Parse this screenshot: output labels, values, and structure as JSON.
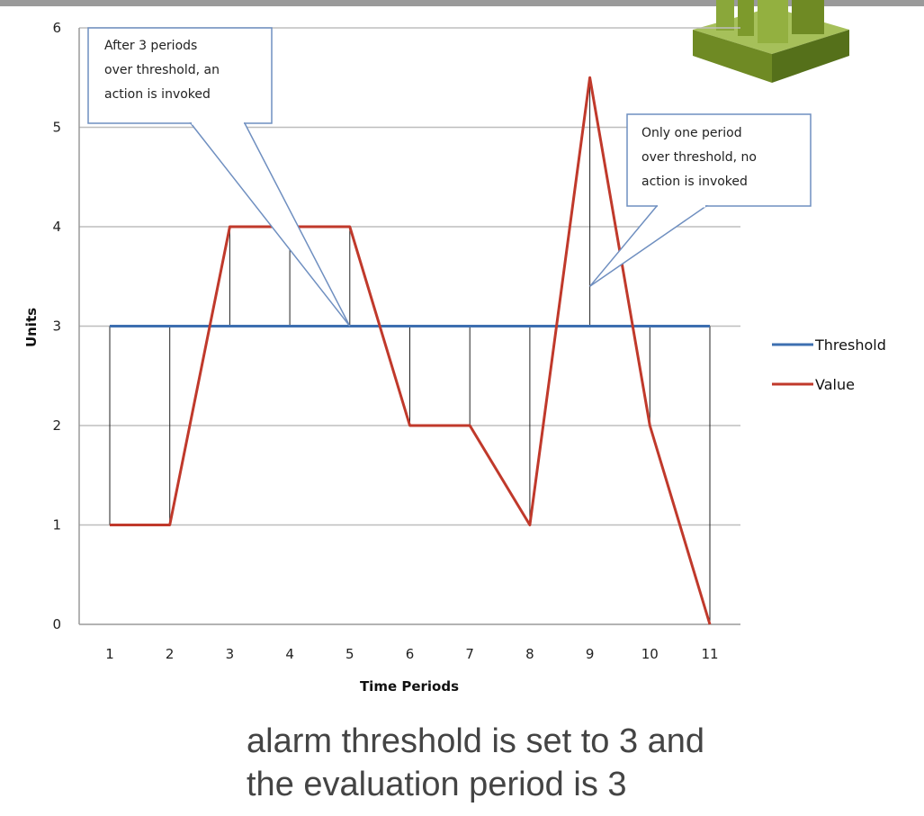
{
  "chart_data": {
    "type": "line",
    "x": [
      1,
      2,
      3,
      4,
      5,
      6,
      7,
      8,
      9,
      10,
      11
    ],
    "series": [
      {
        "name": "Threshold",
        "values": [
          3,
          3,
          3,
          3,
          3,
          3,
          3,
          3,
          3,
          3,
          3
        ],
        "color": "#3d6fb0"
      },
      {
        "name": "Value",
        "values": [
          1,
          1,
          4,
          4,
          4,
          2,
          2,
          1,
          5.5,
          2,
          0
        ],
        "color": "#c0392b"
      }
    ],
    "xlabel": "Time Periods",
    "ylabel": "Units",
    "ylim": [
      0,
      6
    ],
    "yticks": [
      "0",
      "1",
      "2",
      "3",
      "4",
      "5",
      "6"
    ],
    "xticks": [
      "1",
      "2",
      "3",
      "4",
      "5",
      "6",
      "7",
      "8",
      "9",
      "10",
      "11"
    ],
    "grid": "horizontal",
    "legend_position": "right",
    "annotations": [
      {
        "lines": [
          "After 3 periods",
          "over threshold, an",
          "action is invoked"
        ],
        "points_to_x": 5,
        "points_to_y": 3
      },
      {
        "lines": [
          "Only one period",
          "over threshold, no",
          "action is invoked"
        ],
        "points_to_x": 9,
        "points_to_y": 3.4
      }
    ]
  },
  "caption": {
    "line1": "alarm threshold is set to 3 and",
    "line2": "the evaluation period is 3"
  },
  "icons": {
    "logo": "stacked-cubes-logo-icon"
  },
  "colors": {
    "logo_green": "#7d9a2c",
    "grid": "#bdbdbd",
    "drop_lines": "#222222"
  }
}
